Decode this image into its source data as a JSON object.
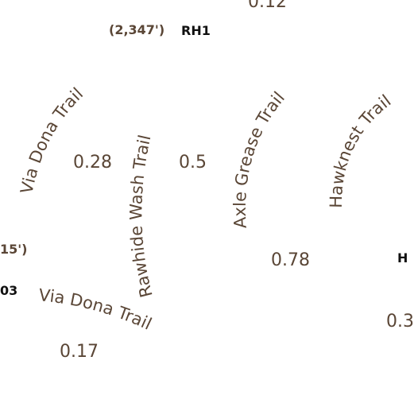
{
  "map": {
    "trails": [
      {
        "name": "Via Dona Trail"
      },
      {
        "name": "Rawhide Wash Trail"
      },
      {
        "name": "Axle Grease Trail"
      },
      {
        "name": "Hawknest Trail"
      },
      {
        "name": "Via Dona Trail"
      }
    ],
    "distances": [
      "0.12",
      "0.28",
      "0.5",
      "0.78",
      "0.17",
      "0.3"
    ],
    "elevations": [
      "(2,347')",
      "15')"
    ],
    "junctions": [
      "RH1",
      "03",
      "H"
    ]
  },
  "colors": {
    "label": "#5a4636",
    "junction": "#111111",
    "background": "#ffffff"
  }
}
